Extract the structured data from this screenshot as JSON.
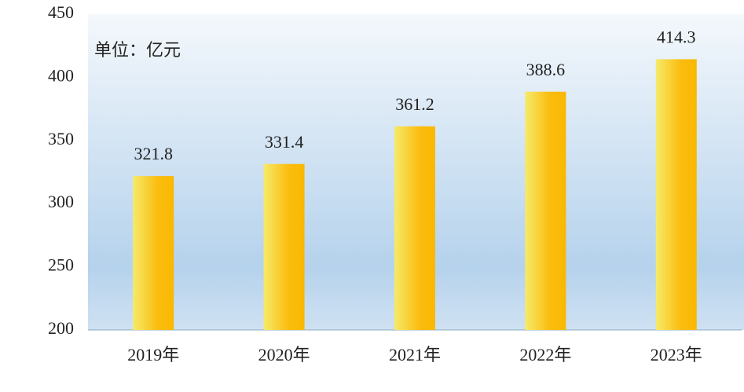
{
  "chart_data": {
    "type": "bar",
    "annotation": "单位：亿元",
    "categories": [
      "2019年",
      "2020年",
      "2021年",
      "2022年",
      "2023年"
    ],
    "values": [
      321.8,
      331.4,
      361.2,
      388.6,
      414.3
    ],
    "color": "#fbbd10",
    "ylim": [
      200,
      450
    ],
    "yticks": [
      200,
      250,
      300,
      350,
      400,
      450
    ]
  }
}
